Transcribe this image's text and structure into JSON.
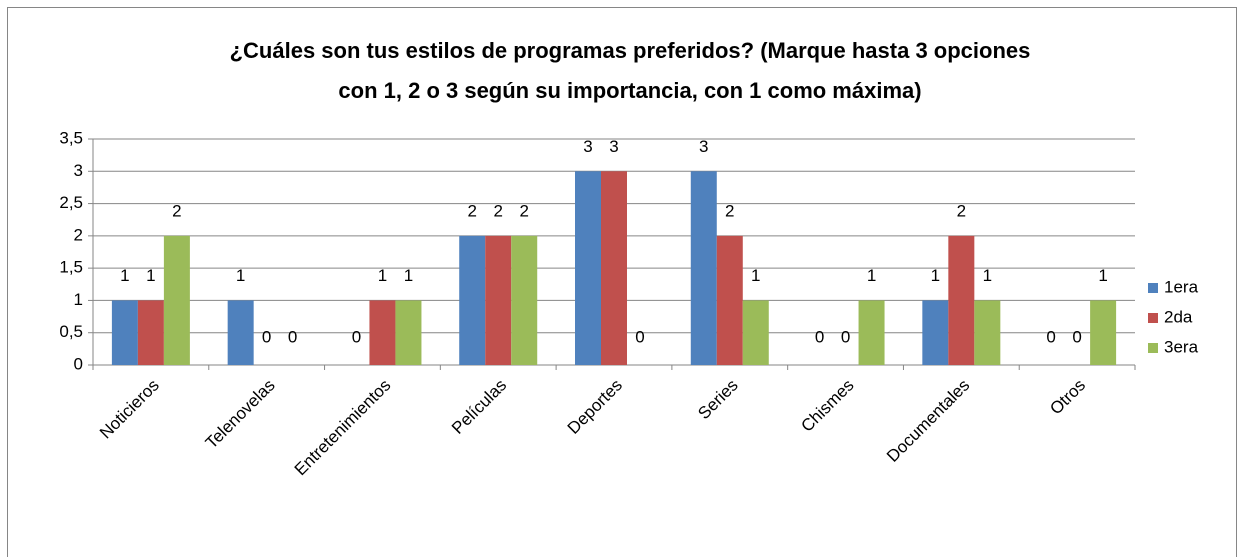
{
  "chart_data": {
    "type": "bar",
    "title": [
      "¿Cuáles son tus estilos de programas preferidos? (Marque hasta 3 opciones",
      "con 1, 2 o 3 según su importancia, con 1 como máxima)"
    ],
    "categories": [
      "Noticieros",
      "Telenovelas",
      "Entretenimientos",
      "Películas",
      "Deportes",
      "Series",
      "Chismes",
      "Documentales",
      "Otros"
    ],
    "series": [
      {
        "name": "1era",
        "color": "#4f81bd",
        "values": [
          1,
          1,
          0,
          2,
          3,
          3,
          0,
          1,
          0
        ]
      },
      {
        "name": "2da",
        "color": "#c0504d",
        "values": [
          1,
          0,
          1,
          2,
          3,
          2,
          0,
          2,
          0
        ]
      },
      {
        "name": "3era",
        "color": "#9bbb59",
        "values": [
          2,
          0,
          1,
          2,
          0,
          1,
          1,
          1,
          1
        ]
      }
    ],
    "ylim": [
      0,
      3.5
    ],
    "yticks": [
      0,
      {
        "value": 0.5,
        "label": "0,5"
      },
      1,
      {
        "value": 1.5,
        "label": "1,5"
      },
      2,
      {
        "value": 2.5,
        "label": "2,5"
      },
      3,
      {
        "value": 3.5,
        "label": "3,5"
      }
    ],
    "grid": true,
    "legend": "right"
  }
}
